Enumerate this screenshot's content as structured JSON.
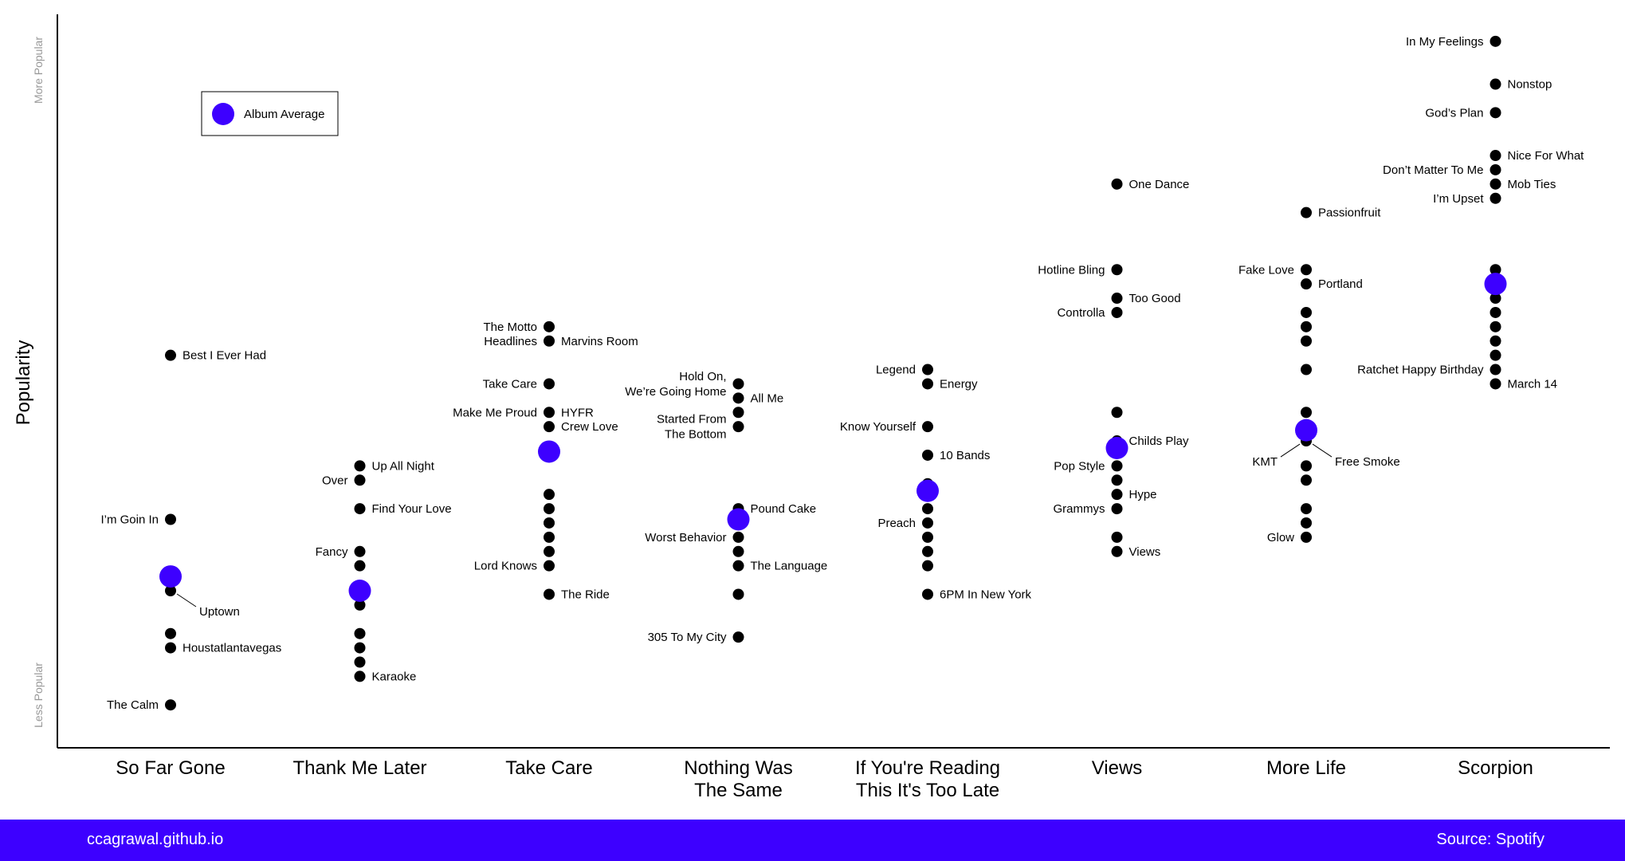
{
  "chart_data": {
    "type": "scatter",
    "ylabel": "Popularity",
    "y_axis_top_label": "More Popular",
    "y_axis_bottom_label": "Less Popular",
    "ylim": [
      0,
      100
    ],
    "legend": {
      "label": "Album Average",
      "placement": "top-left"
    },
    "colors": {
      "track": "#000000",
      "average": "#3d00ff"
    },
    "categories": [
      "So Far Gone",
      "Thank Me Later",
      "Take Care",
      "Nothing Was The Same",
      "If You're Reading This It's Too Late",
      "Views",
      "More Life",
      "Scorpion"
    ],
    "category_lines": [
      [
        "So Far Gone"
      ],
      [
        "Thank Me Later"
      ],
      [
        "Take Care"
      ],
      [
        "Nothing Was",
        "The Same"
      ],
      [
        "If You're Reading",
        "This It's Too Late"
      ],
      [
        "Views"
      ],
      [
        "More Life"
      ],
      [
        "Scorpion"
      ]
    ],
    "albums": [
      {
        "name": "So Far Gone",
        "average": 22,
        "tracks": [
          {
            "y": 53,
            "label": [
              "Best I Ever Had"
            ],
            "side": "right"
          },
          {
            "y": 30,
            "label": [
              "I’m Goin In"
            ],
            "side": "left"
          },
          {
            "y": 20,
            "label": [
              "Uptown"
            ],
            "side": "right",
            "leader": true
          },
          {
            "y": 14
          },
          {
            "y": 12,
            "label": [
              "Houstatlantavegas"
            ],
            "side": "right"
          },
          {
            "y": 4,
            "label": [
              "The Calm"
            ],
            "side": "left"
          }
        ]
      },
      {
        "name": "Thank Me Later",
        "average": 20,
        "tracks": [
          {
            "y": 37.5,
            "label": [
              "Up All Night"
            ],
            "side": "right"
          },
          {
            "y": 35.5,
            "label": [
              "Over"
            ],
            "side": "left"
          },
          {
            "y": 31.5,
            "label": [
              "Find Your Love"
            ],
            "side": "right"
          },
          {
            "y": 25.5,
            "label": [
              "Fancy"
            ],
            "side": "left"
          },
          {
            "y": 23.5
          },
          {
            "y": 18
          },
          {
            "y": 14
          },
          {
            "y": 12
          },
          {
            "y": 10
          },
          {
            "y": 8,
            "label": [
              "Karaoke"
            ],
            "side": "right"
          }
        ]
      },
      {
        "name": "Take Care",
        "average": 39.5,
        "tracks": [
          {
            "y": 57,
            "label": [
              "The Motto"
            ],
            "side": "left"
          },
          {
            "y": 55,
            "label": [
              "Headlines"
            ],
            "side": "left",
            "label2": [
              "Marvins Room"
            ]
          },
          {
            "y": 49,
            "label": [
              "Take Care"
            ],
            "side": "left"
          },
          {
            "y": 45,
            "label": [
              "Make Me Proud"
            ],
            "side": "left",
            "label2": [
              "HYFR"
            ]
          },
          {
            "y": 43,
            "label": [
              "Crew Love"
            ],
            "side": "right"
          },
          {
            "y": 33.5
          },
          {
            "y": 31.5
          },
          {
            "y": 29.5
          },
          {
            "y": 27.5
          },
          {
            "y": 25.5
          },
          {
            "y": 23.5,
            "label": [
              "Lord Knows"
            ],
            "side": "left"
          },
          {
            "y": 19.5,
            "label": [
              "The Ride"
            ],
            "side": "right"
          }
        ]
      },
      {
        "name": "Nothing Was The Same",
        "average": 30,
        "tracks": [
          {
            "y": 49,
            "label": [
              "Hold On,",
              "We’re Going Home"
            ],
            "side": "left"
          },
          {
            "y": 47,
            "label": [
              "All Me"
            ],
            "side": "right"
          },
          {
            "y": 45
          },
          {
            "y": 43,
            "label": [
              "Started From",
              "The Bottom"
            ],
            "side": "left"
          },
          {
            "y": 31.5,
            "label": [
              "Pound Cake"
            ],
            "side": "right"
          },
          {
            "y": 27.5,
            "label": [
              "Worst Behavior"
            ],
            "side": "left"
          },
          {
            "y": 25.5
          },
          {
            "y": 23.5,
            "label": [
              "The Language"
            ],
            "side": "right"
          },
          {
            "y": 19.5
          },
          {
            "y": 13.5,
            "label": [
              "305 To My City"
            ],
            "side": "left"
          }
        ]
      },
      {
        "name": "If You're Reading This It's Too Late",
        "average": 34,
        "tracks": [
          {
            "y": 51,
            "label": [
              "Legend"
            ],
            "side": "left"
          },
          {
            "y": 49,
            "label": [
              "Energy"
            ],
            "side": "right"
          },
          {
            "y": 43,
            "label": [
              "Know Yourself"
            ],
            "side": "left"
          },
          {
            "y": 39,
            "label": [
              "10 Bands"
            ],
            "side": "right"
          },
          {
            "y": 35
          },
          {
            "y": 31.5
          },
          {
            "y": 29.5,
            "label": [
              "Preach"
            ],
            "side": "left"
          },
          {
            "y": 27.5
          },
          {
            "y": 25.5
          },
          {
            "y": 23.5
          },
          {
            "y": 19.5,
            "label": [
              "6PM In New York"
            ],
            "side": "right"
          }
        ]
      },
      {
        "name": "Views",
        "average": 40,
        "tracks": [
          {
            "y": 77,
            "label": [
              "One Dance"
            ],
            "side": "right"
          },
          {
            "y": 65,
            "label": [
              "Hotline Bling"
            ],
            "side": "left"
          },
          {
            "y": 61,
            "label": [
              "Too Good"
            ],
            "side": "right"
          },
          {
            "y": 59,
            "label": [
              "Controlla"
            ],
            "side": "left"
          },
          {
            "y": 45
          },
          {
            "y": 41,
            "label": [
              "Childs Play"
            ],
            "side": "right"
          },
          {
            "y": 37.5,
            "label": [
              "Pop Style"
            ],
            "side": "left"
          },
          {
            "y": 35.5
          },
          {
            "y": 33.5,
            "label": [
              "Hype"
            ],
            "side": "right"
          },
          {
            "y": 31.5,
            "label": [
              "Grammys"
            ],
            "side": "left"
          },
          {
            "y": 27.5
          },
          {
            "y": 25.5,
            "label": [
              "Views"
            ],
            "side": "right"
          }
        ]
      },
      {
        "name": "More Life",
        "average": 42.5,
        "tracks": [
          {
            "y": 73,
            "label": [
              "Passionfruit"
            ],
            "side": "right"
          },
          {
            "y": 65,
            "label": [
              "Fake Love"
            ],
            "side": "left"
          },
          {
            "y": 63,
            "label": [
              "Portland"
            ],
            "side": "right"
          },
          {
            "y": 59
          },
          {
            "y": 57
          },
          {
            "y": 55
          },
          {
            "y": 51
          },
          {
            "y": 45
          },
          {
            "y": 41,
            "label": [
              "KMT"
            ],
            "side": "left",
            "leader": true,
            "label2": [
              "Free Smoke"
            ],
            "leader2": true
          },
          {
            "y": 37.5
          },
          {
            "y": 35.5
          },
          {
            "y": 31.5
          },
          {
            "y": 29.5
          },
          {
            "y": 27.5,
            "label": [
              "Glow"
            ],
            "side": "left"
          }
        ]
      },
      {
        "name": "Scorpion",
        "average": 63,
        "tracks": [
          {
            "y": 97,
            "label": [
              "In My Feelings"
            ],
            "side": "left"
          },
          {
            "y": 91,
            "label": [
              "Nonstop"
            ],
            "side": "right"
          },
          {
            "y": 87,
            "label": [
              "God’s Plan"
            ],
            "side": "left"
          },
          {
            "y": 81,
            "label": [
              "Nice For What"
            ],
            "side": "right"
          },
          {
            "y": 79,
            "label": [
              "Don’t Matter To Me"
            ],
            "side": "left"
          },
          {
            "y": 77,
            "label": [
              "Mob Ties"
            ],
            "side": "right"
          },
          {
            "y": 75,
            "label": [
              "I’m Upset"
            ],
            "side": "left"
          },
          {
            "y": 65
          },
          {
            "y": 63
          },
          {
            "y": 61
          },
          {
            "y": 59
          },
          {
            "y": 57
          },
          {
            "y": 55
          },
          {
            "y": 53
          },
          {
            "y": 51,
            "label": [
              "Ratchet Happy Birthday"
            ],
            "side": "left"
          },
          {
            "y": 49,
            "label": [
              "March 14"
            ],
            "side": "right"
          }
        ]
      }
    ]
  },
  "footer": {
    "left": "ccagrawal.github.io",
    "right": "Source: Spotify"
  }
}
